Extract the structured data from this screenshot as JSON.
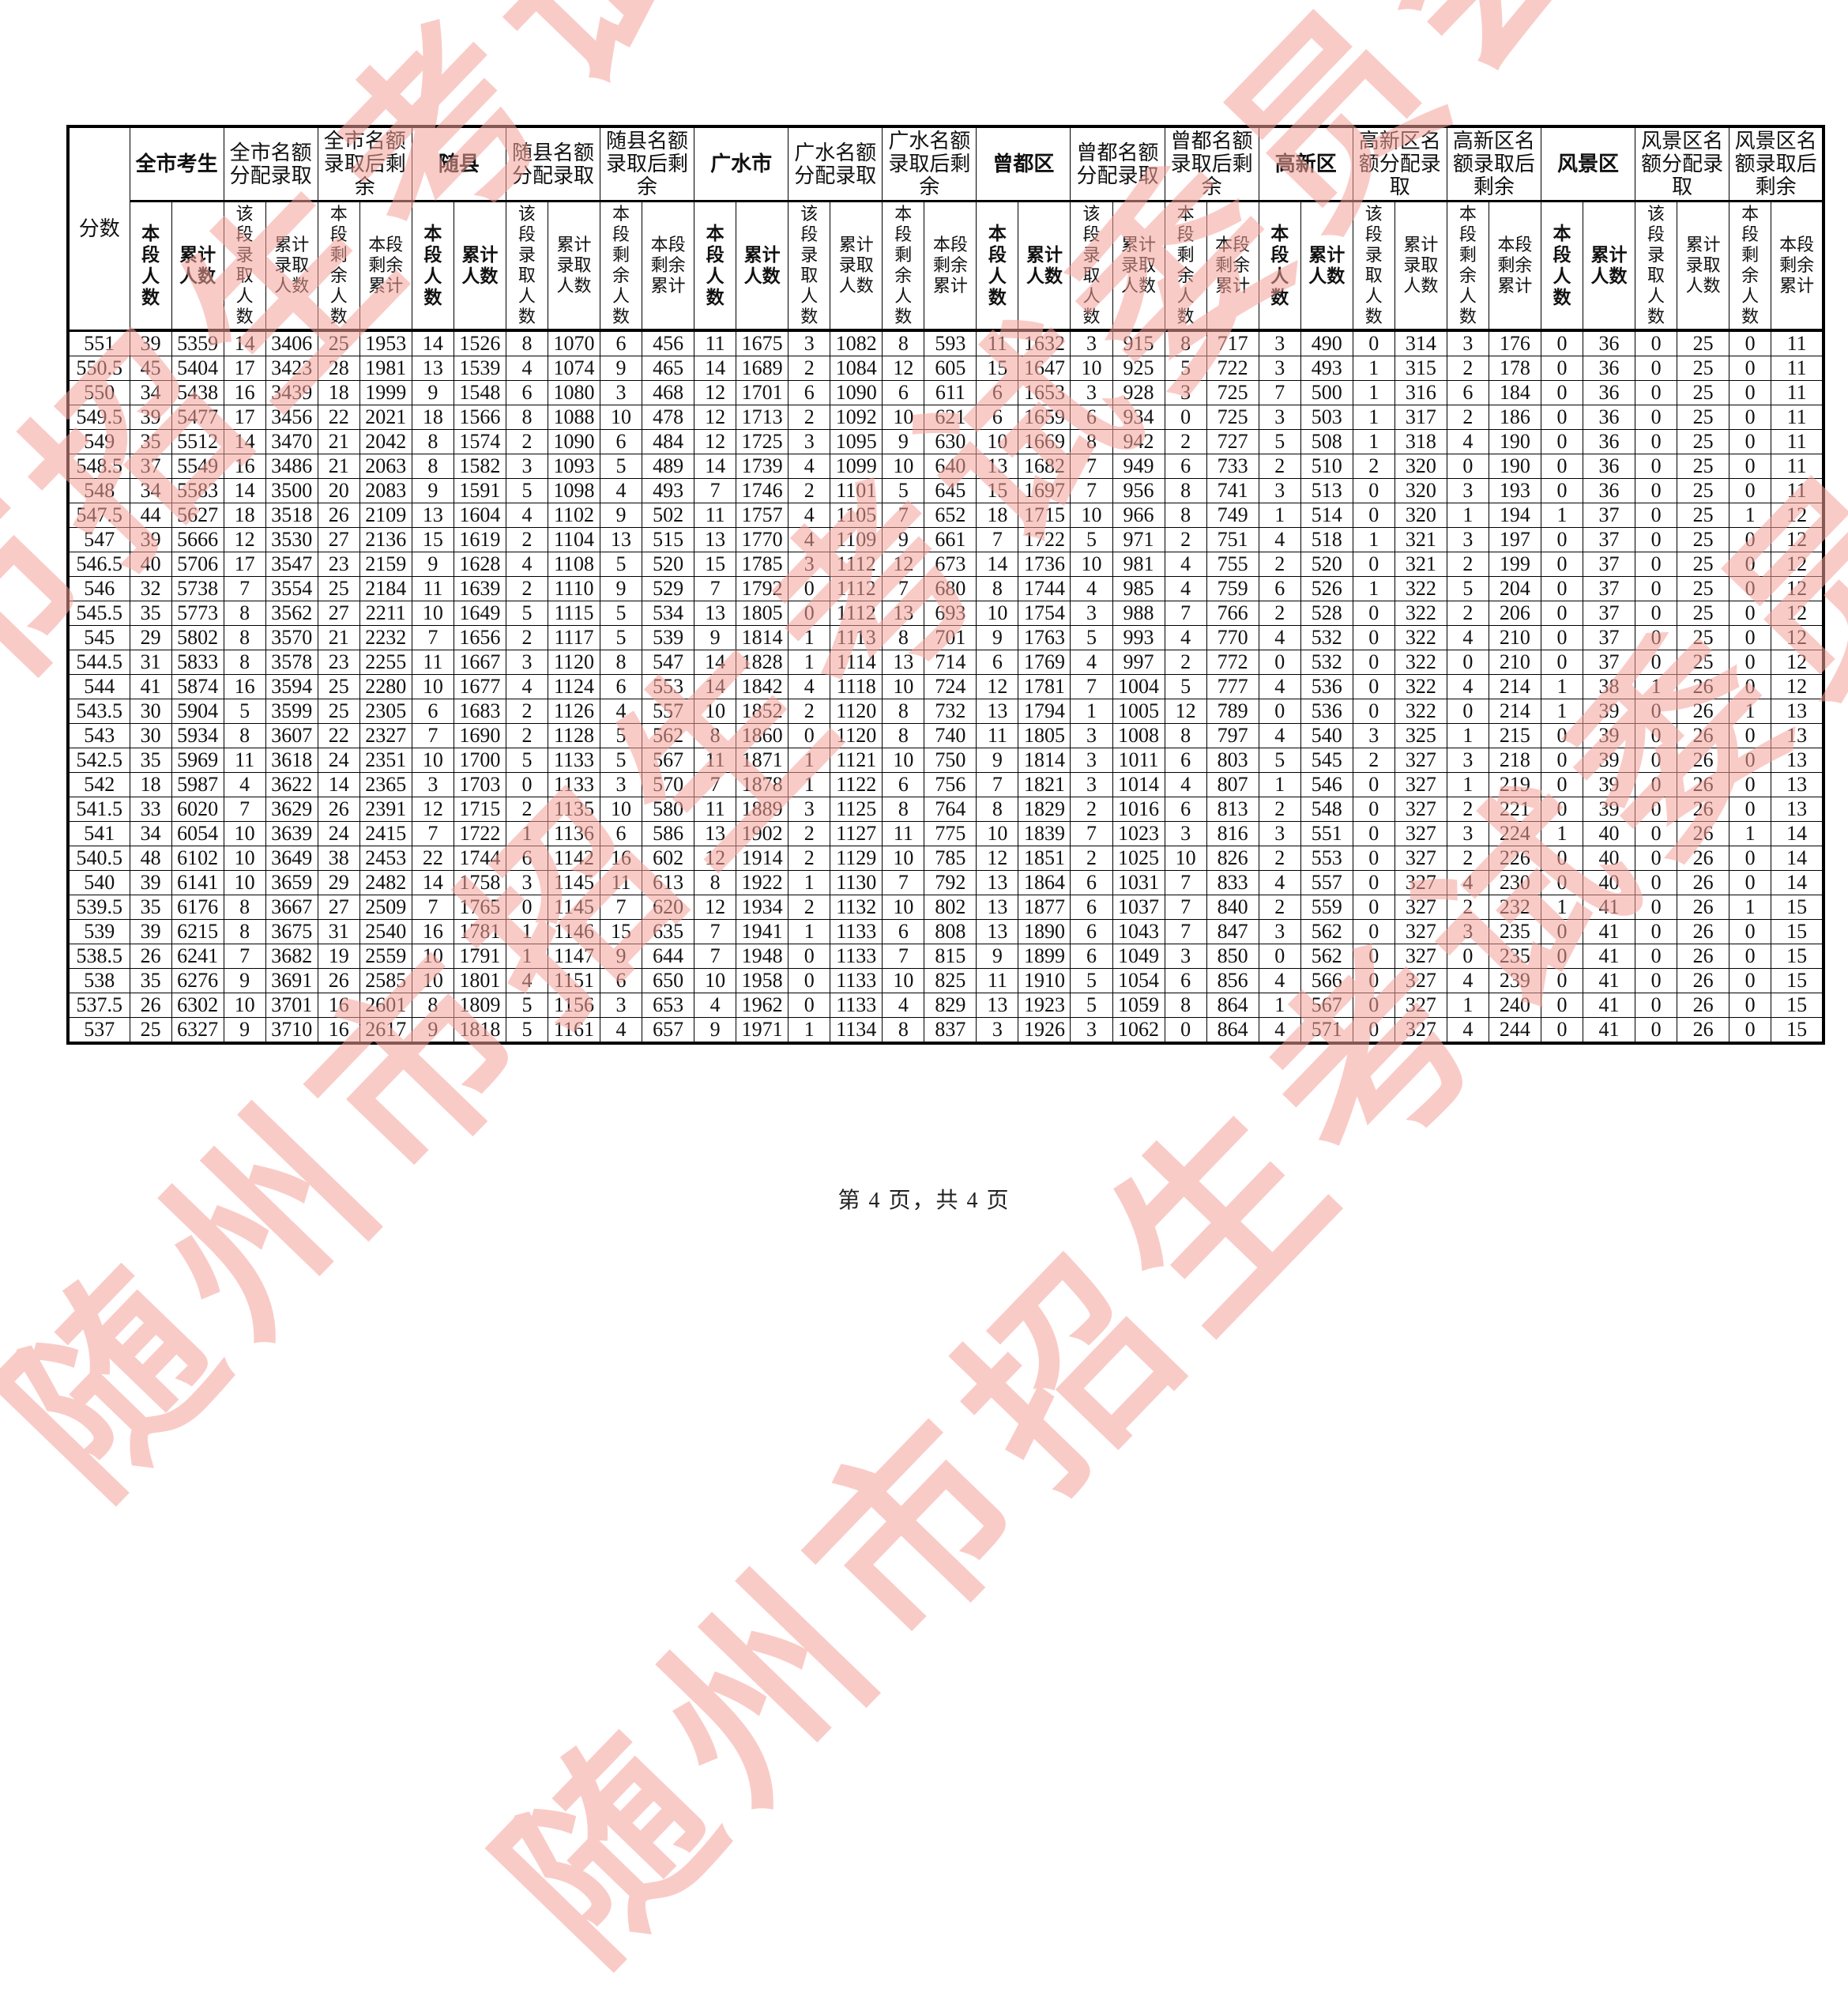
{
  "watermark": {
    "color": "#f5a19a",
    "lines": [
      "随州市招生考试委员会办公室",
      "随州市招生考试委员会办公室",
      "随州市招生考试委员会办公室"
    ]
  },
  "footer": {
    "text": "第 4 页，共 4 页"
  },
  "table": {
    "score_header": "分数",
    "groups": [
      {
        "label": "全市考生",
        "bold": true,
        "sub": [
          "本段人数",
          "累计人数"
        ]
      },
      {
        "label": "全市名额分配录取",
        "bold": false,
        "sub": [
          "该段录取人数",
          "累计录取人数"
        ]
      },
      {
        "label": "全市名额录取后剩余",
        "bold": false,
        "sub": [
          "本段剩余人数",
          "本段剩余累计"
        ]
      },
      {
        "label": "随县",
        "bold": true,
        "sub": [
          "本段人数",
          "累计人数"
        ]
      },
      {
        "label": "随县名额分配录取",
        "bold": false,
        "sub": [
          "该段录取人数",
          "累计录取人数"
        ]
      },
      {
        "label": "随县名额录取后剩余",
        "bold": false,
        "sub": [
          "本段剩余人数",
          "本段剩余累计"
        ]
      },
      {
        "label": "广水市",
        "bold": true,
        "sub": [
          "本段人数",
          "累计人数"
        ]
      },
      {
        "label": "广水名额分配录取",
        "bold": false,
        "sub": [
          "该段录取人数",
          "累计录取人数"
        ]
      },
      {
        "label": "广水名额录取后剩余",
        "bold": false,
        "sub": [
          "本段剩余人数",
          "本段剩余累计"
        ]
      },
      {
        "label": "曾都区",
        "bold": true,
        "sub": [
          "本段人数",
          "累计人数"
        ]
      },
      {
        "label": "曾都名额分配录取",
        "bold": false,
        "sub": [
          "该段录取人数",
          "累计录取人数"
        ]
      },
      {
        "label": "曾都名额录取后剩余",
        "bold": false,
        "sub": [
          "本段剩余人数",
          "本段剩余累计"
        ]
      },
      {
        "label": "高新区",
        "bold": true,
        "sub": [
          "本段人数",
          "累计人数"
        ]
      },
      {
        "label": "高新区名额分配录取",
        "bold": false,
        "sub": [
          "该段录取人数",
          "累计录取人数"
        ]
      },
      {
        "label": "高新区名额录取后剩余",
        "bold": false,
        "sub": [
          "本段剩余人数",
          "本段剩余累计"
        ]
      },
      {
        "label": "风景区",
        "bold": true,
        "sub": [
          "本段人数",
          "累计人数"
        ]
      },
      {
        "label": "风景区名额分配录取",
        "bold": false,
        "sub": [
          "该段录取人数",
          "累计录取人数"
        ]
      },
      {
        "label": "风景区名额录取后剩余",
        "bold": false,
        "sub": [
          "本段剩余人数",
          "本段剩余累计"
        ]
      }
    ],
    "rows": [
      [
        551,
        39,
        5359,
        14,
        3406,
        25,
        1953,
        14,
        1526,
        8,
        1070,
        6,
        456,
        11,
        1675,
        3,
        1082,
        8,
        593,
        11,
        1632,
        3,
        915,
        8,
        717,
        3,
        490,
        0,
        314,
        3,
        176,
        0,
        36,
        0,
        25,
        0,
        11
      ],
      [
        550.5,
        45,
        5404,
        17,
        3423,
        28,
        1981,
        13,
        1539,
        4,
        1074,
        9,
        465,
        14,
        1689,
        2,
        1084,
        12,
        605,
        15,
        1647,
        10,
        925,
        5,
        722,
        3,
        493,
        1,
        315,
        2,
        178,
        0,
        36,
        0,
        25,
        0,
        11
      ],
      [
        550,
        34,
        5438,
        16,
        3439,
        18,
        1999,
        9,
        1548,
        6,
        1080,
        3,
        468,
        12,
        1701,
        6,
        1090,
        6,
        611,
        6,
        1653,
        3,
        928,
        3,
        725,
        7,
        500,
        1,
        316,
        6,
        184,
        0,
        36,
        0,
        25,
        0,
        11
      ],
      [
        549.5,
        39,
        5477,
        17,
        3456,
        22,
        2021,
        18,
        1566,
        8,
        1088,
        10,
        478,
        12,
        1713,
        2,
        1092,
        10,
        621,
        6,
        1659,
        6,
        934,
        0,
        725,
        3,
        503,
        1,
        317,
        2,
        186,
        0,
        36,
        0,
        25,
        0,
        11
      ],
      [
        549,
        35,
        5512,
        14,
        3470,
        21,
        2042,
        8,
        1574,
        2,
        1090,
        6,
        484,
        12,
        1725,
        3,
        1095,
        9,
        630,
        10,
        1669,
        8,
        942,
        2,
        727,
        5,
        508,
        1,
        318,
        4,
        190,
        0,
        36,
        0,
        25,
        0,
        11
      ],
      [
        548.5,
        37,
        5549,
        16,
        3486,
        21,
        2063,
        8,
        1582,
        3,
        1093,
        5,
        489,
        14,
        1739,
        4,
        1099,
        10,
        640,
        13,
        1682,
        7,
        949,
        6,
        733,
        2,
        510,
        2,
        320,
        0,
        190,
        0,
        36,
        0,
        25,
        0,
        11
      ],
      [
        548,
        34,
        5583,
        14,
        3500,
        20,
        2083,
        9,
        1591,
        5,
        1098,
        4,
        493,
        7,
        1746,
        2,
        1101,
        5,
        645,
        15,
        1697,
        7,
        956,
        8,
        741,
        3,
        513,
        0,
        320,
        3,
        193,
        0,
        36,
        0,
        25,
        0,
        11
      ],
      [
        547.5,
        44,
        5627,
        18,
        3518,
        26,
        2109,
        13,
        1604,
        4,
        1102,
        9,
        502,
        11,
        1757,
        4,
        1105,
        7,
        652,
        18,
        1715,
        10,
        966,
        8,
        749,
        1,
        514,
        0,
        320,
        1,
        194,
        1,
        37,
        0,
        25,
        1,
        12
      ],
      [
        547,
        39,
        5666,
        12,
        3530,
        27,
        2136,
        15,
        1619,
        2,
        1104,
        13,
        515,
        13,
        1770,
        4,
        1109,
        9,
        661,
        7,
        1722,
        5,
        971,
        2,
        751,
        4,
        518,
        1,
        321,
        3,
        197,
        0,
        37,
        0,
        25,
        0,
        12
      ],
      [
        546.5,
        40,
        5706,
        17,
        3547,
        23,
        2159,
        9,
        1628,
        4,
        1108,
        5,
        520,
        15,
        1785,
        3,
        1112,
        12,
        673,
        14,
        1736,
        10,
        981,
        4,
        755,
        2,
        520,
        0,
        321,
        2,
        199,
        0,
        37,
        0,
        25,
        0,
        12
      ],
      [
        546,
        32,
        5738,
        7,
        3554,
        25,
        2184,
        11,
        1639,
        2,
        1110,
        9,
        529,
        7,
        1792,
        0,
        1112,
        7,
        680,
        8,
        1744,
        4,
        985,
        4,
        759,
        6,
        526,
        1,
        322,
        5,
        204,
        0,
        37,
        0,
        25,
        0,
        12
      ],
      [
        545.5,
        35,
        5773,
        8,
        3562,
        27,
        2211,
        10,
        1649,
        5,
        1115,
        5,
        534,
        13,
        1805,
        0,
        1112,
        13,
        693,
        10,
        1754,
        3,
        988,
        7,
        766,
        2,
        528,
        0,
        322,
        2,
        206,
        0,
        37,
        0,
        25,
        0,
        12
      ],
      [
        545,
        29,
        5802,
        8,
        3570,
        21,
        2232,
        7,
        1656,
        2,
        1117,
        5,
        539,
        9,
        1814,
        1,
        1113,
        8,
        701,
        9,
        1763,
        5,
        993,
        4,
        770,
        4,
        532,
        0,
        322,
        4,
        210,
        0,
        37,
        0,
        25,
        0,
        12
      ],
      [
        544.5,
        31,
        5833,
        8,
        3578,
        23,
        2255,
        11,
        1667,
        3,
        1120,
        8,
        547,
        14,
        1828,
        1,
        1114,
        13,
        714,
        6,
        1769,
        4,
        997,
        2,
        772,
        0,
        532,
        0,
        322,
        0,
        210,
        0,
        37,
        0,
        25,
        0,
        12
      ],
      [
        544,
        41,
        5874,
        16,
        3594,
        25,
        2280,
        10,
        1677,
        4,
        1124,
        6,
        553,
        14,
        1842,
        4,
        1118,
        10,
        724,
        12,
        1781,
        7,
        1004,
        5,
        777,
        4,
        536,
        0,
        322,
        4,
        214,
        1,
        38,
        1,
        26,
        0,
        12
      ],
      [
        543.5,
        30,
        5904,
        5,
        3599,
        25,
        2305,
        6,
        1683,
        2,
        1126,
        4,
        557,
        10,
        1852,
        2,
        1120,
        8,
        732,
        13,
        1794,
        1,
        1005,
        12,
        789,
        0,
        536,
        0,
        322,
        0,
        214,
        1,
        39,
        0,
        26,
        1,
        13
      ],
      [
        543,
        30,
        5934,
        8,
        3607,
        22,
        2327,
        7,
        1690,
        2,
        1128,
        5,
        562,
        8,
        1860,
        0,
        1120,
        8,
        740,
        11,
        1805,
        3,
        1008,
        8,
        797,
        4,
        540,
        3,
        325,
        1,
        215,
        0,
        39,
        0,
        26,
        0,
        13
      ],
      [
        542.5,
        35,
        5969,
        11,
        3618,
        24,
        2351,
        10,
        1700,
        5,
        1133,
        5,
        567,
        11,
        1871,
        1,
        1121,
        10,
        750,
        9,
        1814,
        3,
        1011,
        6,
        803,
        5,
        545,
        2,
        327,
        3,
        218,
        0,
        39,
        0,
        26,
        0,
        13
      ],
      [
        542,
        18,
        5987,
        4,
        3622,
        14,
        2365,
        3,
        1703,
        0,
        1133,
        3,
        570,
        7,
        1878,
        1,
        1122,
        6,
        756,
        7,
        1821,
        3,
        1014,
        4,
        807,
        1,
        546,
        0,
        327,
        1,
        219,
        0,
        39,
        0,
        26,
        0,
        13
      ],
      [
        541.5,
        33,
        6020,
        7,
        3629,
        26,
        2391,
        12,
        1715,
        2,
        1135,
        10,
        580,
        11,
        1889,
        3,
        1125,
        8,
        764,
        8,
        1829,
        2,
        1016,
        6,
        813,
        2,
        548,
        0,
        327,
        2,
        221,
        0,
        39,
        0,
        26,
        0,
        13
      ],
      [
        541,
        34,
        6054,
        10,
        3639,
        24,
        2415,
        7,
        1722,
        1,
        1136,
        6,
        586,
        13,
        1902,
        2,
        1127,
        11,
        775,
        10,
        1839,
        7,
        1023,
        3,
        816,
        3,
        551,
        0,
        327,
        3,
        224,
        1,
        40,
        0,
        26,
        1,
        14
      ],
      [
        540.5,
        48,
        6102,
        10,
        3649,
        38,
        2453,
        22,
        1744,
        6,
        1142,
        16,
        602,
        12,
        1914,
        2,
        1129,
        10,
        785,
        12,
        1851,
        2,
        1025,
        10,
        826,
        2,
        553,
        0,
        327,
        2,
        226,
        0,
        40,
        0,
        26,
        0,
        14
      ],
      [
        540,
        39,
        6141,
        10,
        3659,
        29,
        2482,
        14,
        1758,
        3,
        1145,
        11,
        613,
        8,
        1922,
        1,
        1130,
        7,
        792,
        13,
        1864,
        6,
        1031,
        7,
        833,
        4,
        557,
        0,
        327,
        4,
        230,
        0,
        40,
        0,
        26,
        0,
        14
      ],
      [
        539.5,
        35,
        6176,
        8,
        3667,
        27,
        2509,
        7,
        1765,
        0,
        1145,
        7,
        620,
        12,
        1934,
        2,
        1132,
        10,
        802,
        13,
        1877,
        6,
        1037,
        7,
        840,
        2,
        559,
        0,
        327,
        2,
        232,
        1,
        41,
        0,
        26,
        1,
        15
      ],
      [
        539,
        39,
        6215,
        8,
        3675,
        31,
        2540,
        16,
        1781,
        1,
        1146,
        15,
        635,
        7,
        1941,
        1,
        1133,
        6,
        808,
        13,
        1890,
        6,
        1043,
        7,
        847,
        3,
        562,
        0,
        327,
        3,
        235,
        0,
        41,
        0,
        26,
        0,
        15
      ],
      [
        538.5,
        26,
        6241,
        7,
        3682,
        19,
        2559,
        10,
        1791,
        1,
        1147,
        9,
        644,
        7,
        1948,
        0,
        1133,
        7,
        815,
        9,
        1899,
        6,
        1049,
        3,
        850,
        0,
        562,
        0,
        327,
        0,
        235,
        0,
        41,
        0,
        26,
        0,
        15
      ],
      [
        538,
        35,
        6276,
        9,
        3691,
        26,
        2585,
        10,
        1801,
        4,
        1151,
        6,
        650,
        10,
        1958,
        0,
        1133,
        10,
        825,
        11,
        1910,
        5,
        1054,
        6,
        856,
        4,
        566,
        0,
        327,
        4,
        239,
        0,
        41,
        0,
        26,
        0,
        15
      ],
      [
        537.5,
        26,
        6302,
        10,
        3701,
        16,
        2601,
        8,
        1809,
        5,
        1156,
        3,
        653,
        4,
        1962,
        0,
        1133,
        4,
        829,
        13,
        1923,
        5,
        1059,
        8,
        864,
        1,
        567,
        0,
        327,
        1,
        240,
        0,
        41,
        0,
        26,
        0,
        15
      ],
      [
        537,
        25,
        6327,
        9,
        3710,
        16,
        2617,
        9,
        1818,
        5,
        1161,
        4,
        657,
        9,
        1971,
        1,
        1134,
        8,
        837,
        3,
        1926,
        3,
        1062,
        0,
        864,
        4,
        571,
        0,
        327,
        4,
        244,
        0,
        41,
        0,
        26,
        0,
        15
      ]
    ]
  }
}
